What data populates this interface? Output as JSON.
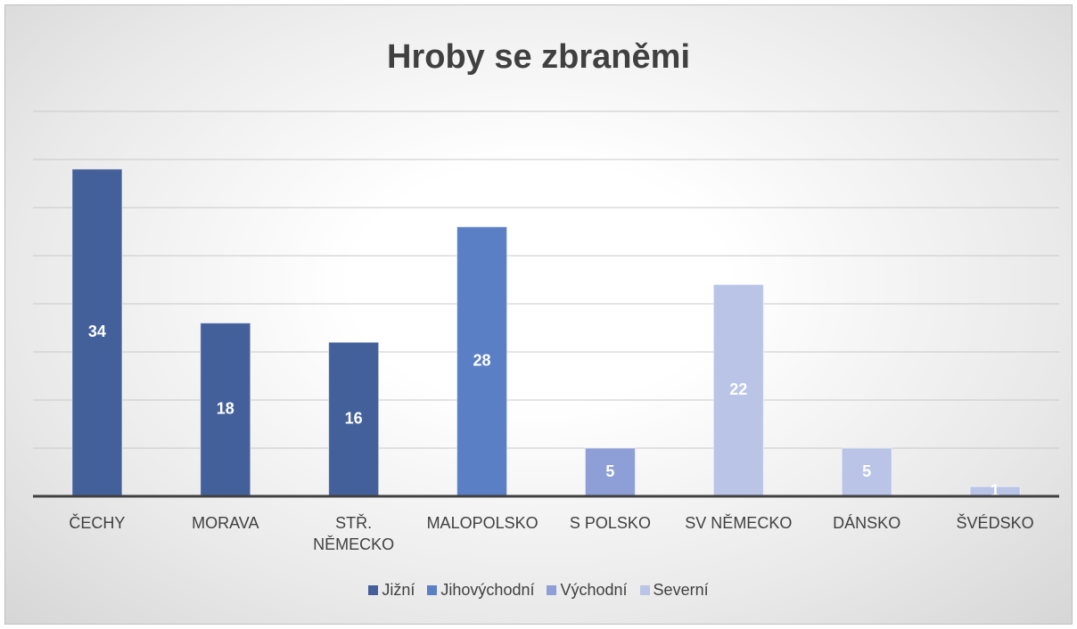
{
  "chart_data": {
    "type": "bar",
    "title": "Hroby se zbraněmi",
    "categories": [
      "ČECHY",
      "MORAVA",
      "STŘ. NĚMECKO",
      "MALOPOLSKO",
      "S POLSKO",
      "SV NĚMECKO",
      "DÁNSKO",
      "ŠVÉDSKO"
    ],
    "series": [
      {
        "name": "Jižní",
        "color": "#44609b",
        "values": [
          34,
          18,
          16,
          null,
          null,
          null,
          null,
          null
        ]
      },
      {
        "name": "Jihovýchodní",
        "color": "#5a7fc5",
        "values": [
          null,
          null,
          null,
          28,
          null,
          null,
          null,
          null
        ]
      },
      {
        "name": "Východní",
        "color": "#8d9fd6",
        "values": [
          null,
          null,
          null,
          null,
          5,
          null,
          null,
          null
        ]
      },
      {
        "name": "Severní",
        "color": "#b9c4e6",
        "values": [
          null,
          null,
          null,
          null,
          null,
          22,
          5,
          1
        ]
      }
    ],
    "ylim": [
      0,
      40
    ],
    "yticks": [
      0,
      5,
      10,
      15,
      20,
      25,
      30,
      35,
      40
    ],
    "grid": true,
    "legend": "bottom"
  }
}
